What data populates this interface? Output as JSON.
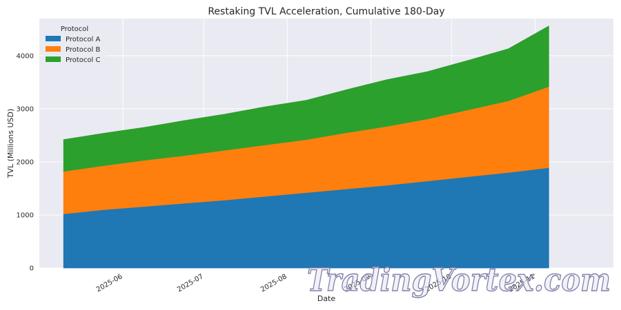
{
  "chart_data": {
    "type": "area",
    "stacked": true,
    "title": "Restaking TVL Acceleration, Cumulative 180-Day",
    "xlabel": "Date",
    "ylabel": "TVL (Millions USD)",
    "x_range": [
      "2025-05-01",
      "2025-11-30"
    ],
    "ylim": [
      0,
      4700
    ],
    "y_ticks": [
      0,
      1000,
      2000,
      3000,
      4000
    ],
    "x_ticks": [
      {
        "date": "2025-06-01",
        "label": "2025-06"
      },
      {
        "date": "2025-07-01",
        "label": "2025-07"
      },
      {
        "date": "2025-08-01",
        "label": "2025-08"
      },
      {
        "date": "2025-09-01",
        "label": "2025-09"
      },
      {
        "date": "2025-10-01",
        "label": "2025-10"
      },
      {
        "date": "2025-11-01",
        "label": "2025-11"
      }
    ],
    "x": [
      "2025-05-10",
      "2025-05-25",
      "2025-06-09",
      "2025-06-24",
      "2025-07-09",
      "2025-07-24",
      "2025-08-08",
      "2025-08-23",
      "2025-09-07",
      "2025-09-22",
      "2025-10-07",
      "2025-10-22",
      "2025-11-06"
    ],
    "series": [
      {
        "name": "Protocol A",
        "color": "#1f77b4",
        "values": [
          1020,
          1100,
          1160,
          1220,
          1280,
          1350,
          1420,
          1490,
          1560,
          1640,
          1720,
          1800,
          1890
        ]
      },
      {
        "name": "Protocol B",
        "color": "#ff7f0e",
        "values": [
          800,
          830,
          870,
          900,
          940,
          970,
          1000,
          1060,
          1110,
          1170,
          1260,
          1350,
          1530
        ]
      },
      {
        "name": "Protocol C",
        "color": "#2ca02c",
        "values": [
          600,
          610,
          620,
          660,
          680,
          720,
          740,
          810,
          880,
          890,
          930,
          980,
          1140
        ]
      }
    ],
    "legend": {
      "title": "Protocol",
      "position": "top-left"
    },
    "grid": true,
    "background": "#eaeaf2"
  },
  "watermark": "TradingVortex.com"
}
